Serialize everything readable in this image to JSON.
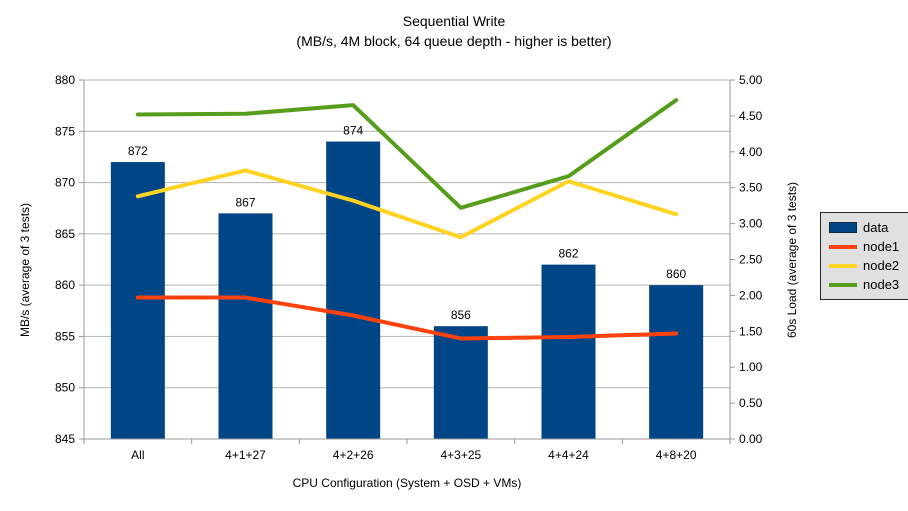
{
  "chart_data": {
    "type": "bar",
    "title": "Sequential Write",
    "subtitle": "(MB/s, 4M block, 64 queue depth - higher is better)",
    "categories": [
      "All",
      "4+1+27",
      "4+2+26",
      "4+3+25",
      "4+4+24",
      "4+8+20"
    ],
    "bar_series": {
      "name": "data",
      "axis": "left",
      "values": [
        872,
        867,
        874,
        856,
        862,
        860
      ],
      "color": "#004586"
    },
    "line_series": [
      {
        "name": "node1",
        "axis": "right",
        "values": [
          1.97,
          1.97,
          1.72,
          1.4,
          1.42,
          1.47
        ],
        "color": "#ff420e"
      },
      {
        "name": "node2",
        "axis": "right",
        "values": [
          3.38,
          3.74,
          3.32,
          2.81,
          3.59,
          3.13
        ],
        "color": "#ffd320"
      },
      {
        "name": "node3",
        "axis": "right",
        "values": [
          4.52,
          4.53,
          4.65,
          3.22,
          3.66,
          4.72
        ],
        "color": "#579d1c"
      }
    ],
    "left_axis": {
      "label": "MB/s (average of 3 tests)",
      "min": 845,
      "max": 880,
      "step": 5
    },
    "right_axis": {
      "label": "60s Load (average of 3 tests)",
      "min": 0,
      "max": 5,
      "step": 0.5,
      "decimals": 2
    },
    "x_axis": {
      "label": "CPU Configuration (System + OSD + VMs)"
    },
    "legend": {
      "position": "right",
      "entries": [
        {
          "label": "data",
          "type": "box",
          "color": "#004586"
        },
        {
          "label": "node1",
          "type": "line",
          "color": "#ff420e"
        },
        {
          "label": "node2",
          "type": "line",
          "color": "#ffd320"
        },
        {
          "label": "node3",
          "type": "line",
          "color": "#579d1c"
        }
      ]
    },
    "data_labels_on_bars": true,
    "grid": {
      "horizontal": true,
      "vertical": false,
      "gridline_color": "#b3b3b3",
      "axis_color": "#999999"
    },
    "background_color": "#ffffff"
  }
}
